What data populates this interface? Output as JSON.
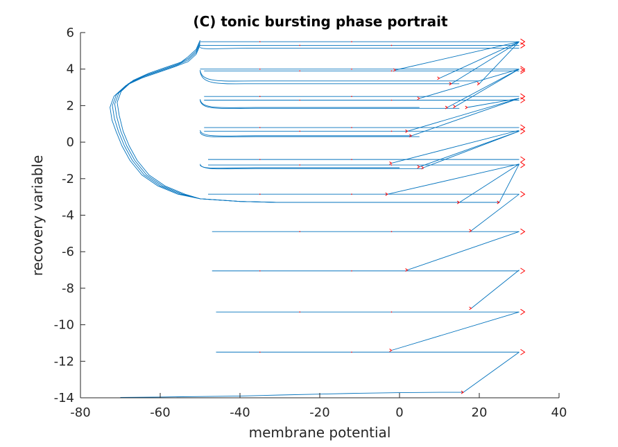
{
  "chart_data": {
    "type": "line",
    "title": "(C) tonic bursting phase portrait",
    "xlabel": "membrane potential",
    "ylabel": "recovery variable",
    "xlim": [
      -80,
      40
    ],
    "ylim": [
      -14,
      6
    ],
    "xticks": [
      -80,
      -60,
      -40,
      -20,
      0,
      20,
      40
    ],
    "yticks": [
      -14,
      -12,
      -10,
      -8,
      -6,
      -4,
      -2,
      0,
      2,
      4,
      6
    ],
    "grid": false,
    "line_color": "#0072bd",
    "arrow_color": "#ff0000",
    "approach": [
      {
        "x": -70,
        "y": -13.98
      },
      {
        "x": -60,
        "y": -13.96
      },
      {
        "x": -50,
        "y": -13.93
      },
      {
        "x": -40,
        "y": -13.9
      },
      {
        "x": -30,
        "y": -13.85
      },
      {
        "x": -20,
        "y": -13.8
      },
      {
        "x": -10,
        "y": -13.75
      },
      {
        "x": 0,
        "y": -13.72
      },
      {
        "x": 10,
        "y": -13.7
      },
      {
        "x": 16,
        "y": -13.7
      }
    ],
    "quiescent_loop": [
      {
        "x": -50,
        "y": 5.4
      },
      {
        "x": -51,
        "y": 4.9
      },
      {
        "x": -53,
        "y": 4.5
      },
      {
        "x": -56,
        "y": 4.2
      },
      {
        "x": -60,
        "y": 3.9
      },
      {
        "x": -64,
        "y": 3.6
      },
      {
        "x": -68,
        "y": 3.2
      },
      {
        "x": -71,
        "y": 2.6
      },
      {
        "x": -72,
        "y": 2.0
      },
      {
        "x": -71.5,
        "y": 1.3
      },
      {
        "x": -70.5,
        "y": 0.6
      },
      {
        "x": -69,
        "y": -0.2
      },
      {
        "x": -67,
        "y": -1.0
      },
      {
        "x": -64,
        "y": -1.8
      },
      {
        "x": -60,
        "y": -2.4
      },
      {
        "x": -55,
        "y": -2.85
      },
      {
        "x": -50,
        "y": -3.1
      },
      {
        "x": -40,
        "y": -3.25
      },
      {
        "x": -30,
        "y": -3.3
      },
      {
        "x": -20,
        "y": -3.3
      },
      {
        "x": -10,
        "y": -3.3
      },
      {
        "x": 0,
        "y": -3.3
      },
      {
        "x": 10,
        "y": -3.3
      },
      {
        "x": 20,
        "y": -3.3
      },
      {
        "x": 25,
        "y": -3.3
      }
    ],
    "spikes": [
      {
        "v_start": 16,
        "u_start": -13.7,
        "u_reset": -11.5
      },
      {
        "v_start": -2,
        "u_start": -11.4,
        "u_reset": -9.3
      },
      {
        "v_start": 18,
        "u_start": -9.1,
        "u_reset": -7.0
      },
      {
        "v_start": 2,
        "u_start": -7.0,
        "u_reset": -4.9
      },
      {
        "v_start": 18,
        "u_start": -4.85,
        "u_reset": -2.85
      },
      {
        "v_start": -3,
        "u_start": -2.85,
        "u_reset": -1.2
      },
      {
        "v_start": -2,
        "u_start": -1.15,
        "u_reset": 0.65
      },
      {
        "v_start": 2,
        "u_start": 0.6,
        "u_reset": 2.4
      },
      {
        "v_start": 5,
        "u_start": 2.4,
        "u_reset": 4.0
      },
      {
        "v_start": -1,
        "u_start": 3.95,
        "u_reset": 5.5
      },
      {
        "v_start": 15,
        "u_start": -3.3,
        "u_reset": -1.2
      },
      {
        "v_start": 5,
        "u_start": -1.35,
        "u_reset": 0.6
      },
      {
        "v_start": 3,
        "u_start": 0.35,
        "u_reset": 2.4
      },
      {
        "v_start": 12,
        "u_start": 1.9,
        "u_reset": 4.0
      },
      {
        "v_start": 10,
        "u_start": 3.5,
        "u_reset": 5.5
      },
      {
        "v_start": 25,
        "u_start": -3.3,
        "u_reset": -1.2
      },
      {
        "v_start": 6,
        "u_start": -1.4,
        "u_reset": 0.6
      },
      {
        "v_start": 14,
        "u_start": 1.95,
        "u_reset": 4.0
      },
      {
        "v_start": 13,
        "u_start": 3.2,
        "u_reset": 5.5
      },
      {
        "v_start": 20,
        "u_start": 3.2,
        "u_reset": 5.5
      },
      {
        "v_start": 17,
        "u_start": 1.9,
        "u_reset": 2.4
      }
    ],
    "reset_levels": [
      {
        "u": 5.5,
        "v_left": -50
      },
      {
        "u": 5.3,
        "v_left": -50
      },
      {
        "u": 4.0,
        "v_left": -50
      },
      {
        "u": 3.9,
        "v_left": -49
      },
      {
        "u": 2.5,
        "v_left": -49
      },
      {
        "u": 2.3,
        "v_left": -49
      },
      {
        "u": 0.8,
        "v_left": -49
      },
      {
        "u": 0.6,
        "v_left": -49
      },
      {
        "u": -0.95,
        "v_left": -48
      },
      {
        "u": -1.25,
        "v_left": -48
      },
      {
        "u": -2.85,
        "v_left": -48
      },
      {
        "u": -4.9,
        "v_left": -47
      },
      {
        "u": -7.05,
        "v_left": -47
      },
      {
        "u": -9.3,
        "v_left": -46
      },
      {
        "u": -11.5,
        "v_left": -46
      }
    ],
    "sag_curves": [
      {
        "u_top": 3.95,
        "u_bottom": 3.35,
        "v_end": 20
      },
      {
        "u_top": 3.9,
        "u_bottom": 3.2,
        "v_end": 15
      },
      {
        "u_top": 2.35,
        "u_bottom": 1.9,
        "v_end": 5
      },
      {
        "u_top": 2.3,
        "u_bottom": 1.85,
        "v_end": 15
      },
      {
        "u_top": 0.65,
        "u_bottom": 0.35,
        "v_end": 3
      },
      {
        "u_top": 0.55,
        "u_bottom": 0.3,
        "v_end": 5
      },
      {
        "u_top": -1.2,
        "u_bottom": -1.45,
        "v_end": 6
      },
      {
        "u_top": -1.25,
        "u_bottom": -1.4,
        "v_end": 0
      },
      {
        "u_top": 5.2,
        "u_bottom": 5.15,
        "v_end": 30
      }
    ]
  }
}
